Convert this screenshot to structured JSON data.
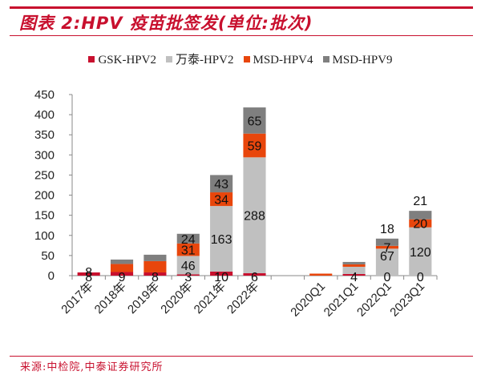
{
  "header": {
    "title": "图表 2:HPV 疫苗批签发(单位:批次)"
  },
  "footer": {
    "source": "来源:中检院,中泰证券研究所"
  },
  "chart_data": {
    "type": "bar",
    "stacked": true,
    "title": "图表 2:HPV 疫苗批签发(单位:批次)",
    "xlabel": "",
    "ylabel": "",
    "ylim": [
      0,
      450
    ],
    "yticks": [
      0,
      50,
      100,
      150,
      200,
      250,
      300,
      350,
      400,
      450
    ],
    "grid": false,
    "legend_position": "top",
    "categories": [
      "2017年",
      "2018年",
      "2019年",
      "2020年",
      "2021年",
      "2022年",
      "",
      "2020Q1",
      "2021Q1",
      "2022Q1",
      "2023Q1"
    ],
    "series": [
      {
        "name": "GSK-HPV2",
        "color": "#c8102e",
        "values": [
          8,
          9,
          8,
          3,
          10,
          6,
          null,
          0,
          4,
          0,
          0
        ],
        "labels": [
          "8",
          "9",
          "8",
          "3",
          "10",
          "6",
          "",
          "",
          "4",
          "0",
          "0"
        ]
      },
      {
        "name": "万泰-HPV2",
        "color": "#c0c0c0",
        "values": [
          0,
          0,
          0,
          46,
          163,
          288,
          null,
          0,
          18,
          67,
          120
        ],
        "labels": [
          "",
          "",
          "",
          "46",
          "163",
          "288",
          "",
          "",
          "",
          "67",
          "120"
        ]
      },
      {
        "name": "MSD-HPV4",
        "color": "#e8460c",
        "values": [
          0,
          20,
          28,
          31,
          34,
          59,
          null,
          5,
          6,
          7,
          20
        ],
        "labels": [
          "",
          "",
          "",
          "31",
          "34",
          "59",
          "",
          "",
          "",
          "7",
          "20"
        ]
      },
      {
        "name": "MSD-HPV9",
        "color": "#7f7f7f",
        "values": [
          0,
          11,
          16,
          24,
          43,
          65,
          null,
          0,
          6,
          18,
          21
        ],
        "labels": [
          "",
          "",
          "",
          "24",
          "43",
          "65",
          "",
          "",
          "",
          "18",
          "21"
        ]
      }
    ],
    "extra_labels": [
      {
        "category": "2017年",
        "text": "8"
      }
    ]
  }
}
